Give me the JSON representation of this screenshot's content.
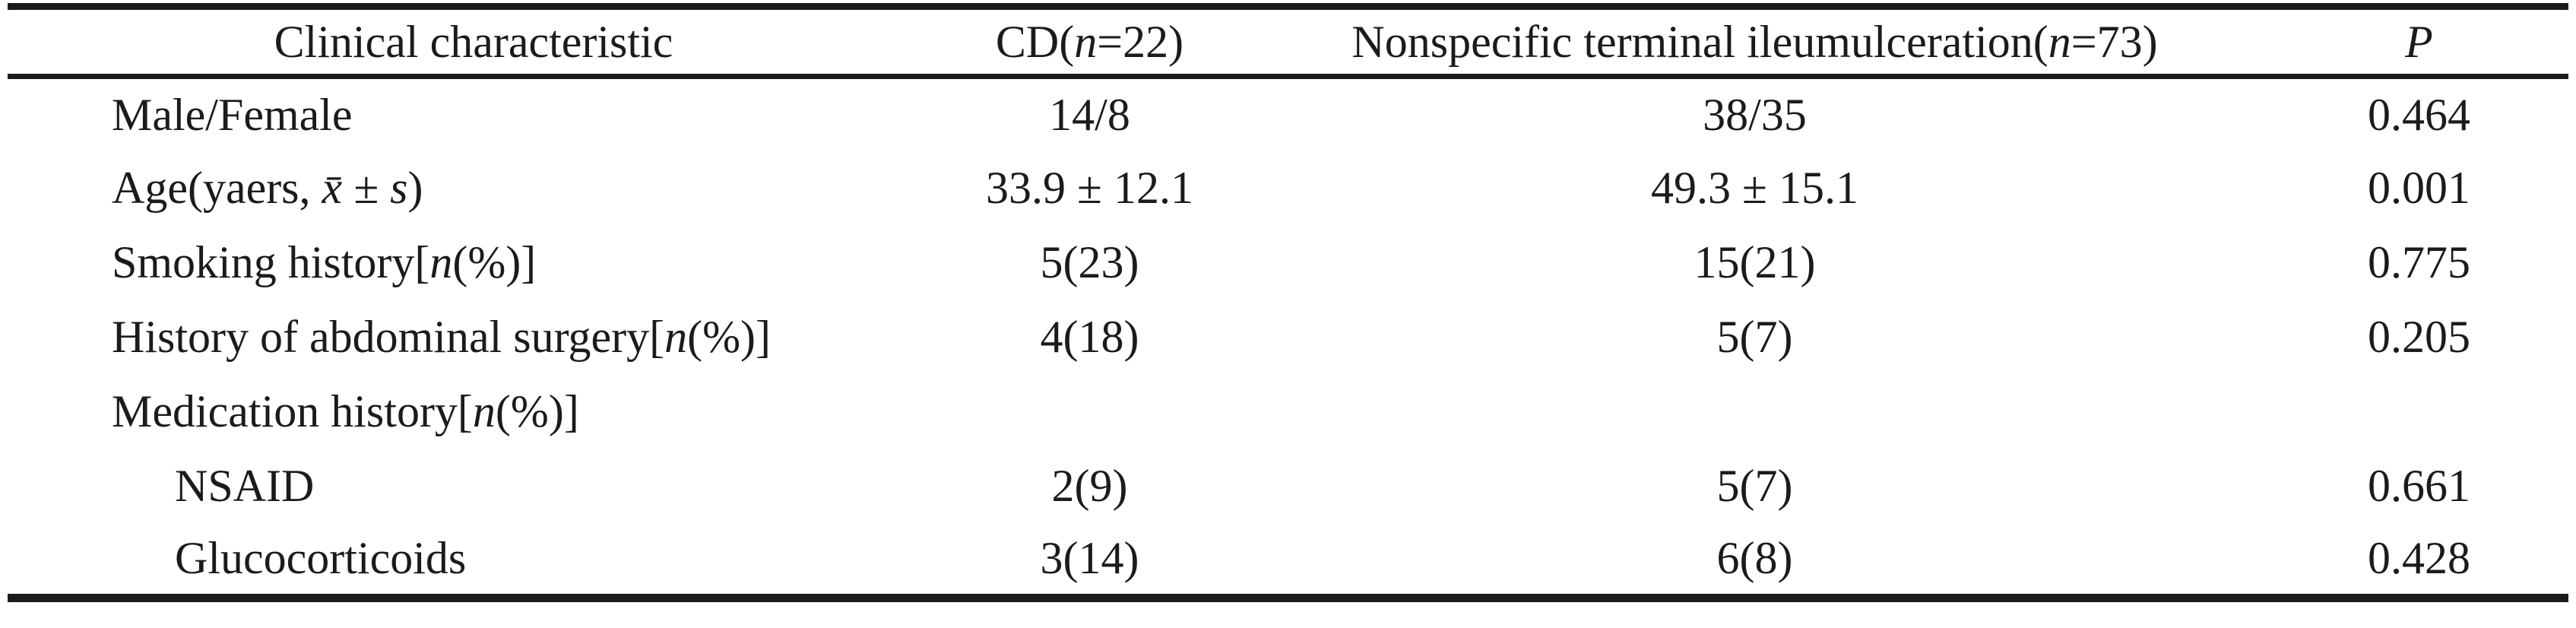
{
  "colors": {
    "text": "#1b1b1b",
    "rule": "#1b1b1b",
    "background": "#ffffff"
  },
  "table": {
    "header": {
      "col1": {
        "pre": "Clinical characteristic",
        "it": "",
        "post": ""
      },
      "col2": {
        "pre": "CD(",
        "it": "n",
        "post": "=22)"
      },
      "col3": {
        "pre": "Nonspecific terminal ileumulceration(",
        "it": "n",
        "post": "=73)"
      },
      "col4": {
        "pre": "",
        "it": "P",
        "post": ""
      }
    },
    "rows": [
      {
        "label": {
          "pre": "Male/Female",
          "it": "",
          "post": ""
        },
        "cd": "14/8",
        "ntiu": "38/35",
        "p": "0.464"
      },
      {
        "label": {
          "pre": "Age(yaers, ",
          "it": "x̄ ± s",
          "post": ")"
        },
        "cd": "33.9 ± 12.1",
        "ntiu": "49.3 ± 15.1",
        "p": "0.001"
      },
      {
        "label": {
          "pre": "Smoking history[",
          "it": "n",
          "post": "(%)]"
        },
        "cd": "5(23)",
        "ntiu": "15(21)",
        "p": "0.775"
      },
      {
        "label": {
          "pre": "History of abdominal surgery[",
          "it": "n",
          "post": "(%)]"
        },
        "cd": "4(18)",
        "ntiu": "5(7)",
        "p": "0.205"
      },
      {
        "label": {
          "pre": "Medication history[",
          "it": "n",
          "post": "(%)]"
        },
        "cd": "",
        "ntiu": "",
        "p": ""
      },
      {
        "label": {
          "pre": "NSAID",
          "it": "",
          "post": ""
        },
        "cd": "2(9)",
        "ntiu": "5(7)",
        "p": "0.661"
      },
      {
        "label": {
          "pre": "Glucocorticoids",
          "it": "",
          "post": ""
        },
        "cd": "3(14)",
        "ntiu": "6(8)",
        "p": "0.428"
      }
    ]
  }
}
